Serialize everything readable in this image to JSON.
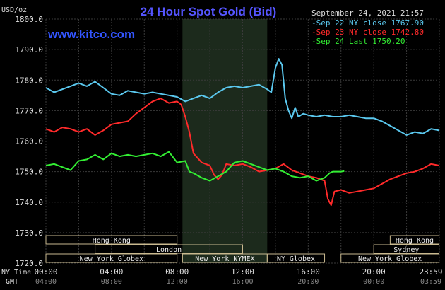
{
  "header": {
    "title": "24 Hour Spot Gold (Bid)",
    "datetime": "September 24, 2021 21:57",
    "site": "www.kitco.com",
    "currency_label": "USD/oz"
  },
  "legend": [
    {
      "text": "Sep 22 NY close 1767.90",
      "color": "#5bc8ee"
    },
    {
      "text": "Sep 23 NY close 1742.80",
      "color": "#ff2a2a"
    },
    {
      "text": "Sep 24 Last 1750.20",
      "color": "#33ee33"
    }
  ],
  "sessions": {
    "row1": [
      {
        "label": "Hong Kong",
        "start": "00:00",
        "end": "08:00"
      },
      {
        "label": "Hong Kong",
        "start": "21:00",
        "end": "23:59"
      }
    ],
    "row2": [
      {
        "label": "London",
        "start": "03:00",
        "end": "12:00"
      },
      {
        "label": "Sydney",
        "start": "20:00",
        "end": "23:59"
      }
    ],
    "row3": [
      {
        "label": "New York Globex",
        "start": "00:00",
        "end": "08:00"
      },
      {
        "label": "New York NYMEX",
        "start": "08:20",
        "end": "13:30"
      },
      {
        "label": "NY Globex",
        "start": "13:30",
        "end": "17:00"
      },
      {
        "label": "New York Globex",
        "start": "18:00",
        "end": "23:59"
      }
    ]
  },
  "axis": {
    "row1_label": "NY Time",
    "row2_label": "GMT",
    "ny_ticks": [
      "00:00",
      "04:00",
      "08:00",
      "12:00",
      "16:00",
      "20:00",
      "23:59"
    ],
    "gmt_ticks": [
      "04:00",
      "08:00",
      "12:00",
      "16:00",
      "20:00",
      "00:00",
      "03:59"
    ]
  },
  "colors": {
    "background": "#000000",
    "grid": "#3a3a3a",
    "title": "#5555ff",
    "site": "#3355ff",
    "nymex_shade": "#1c2a1c",
    "session_border": "#c9b98f",
    "axis_text": "#dddddd"
  },
  "chart_data": {
    "type": "line",
    "title": "24 Hour Spot Gold (Bid)",
    "ylabel": "USD/oz",
    "xlabel": "NY Time",
    "ylim": [
      1720,
      1800
    ],
    "xlim": [
      0,
      24
    ],
    "yticks": [
      "1800.0",
      "1790.0",
      "1780.0",
      "1770.0",
      "1760.0",
      "1750.0",
      "1740.0",
      "1730.0",
      "1720.0"
    ],
    "shaded_region": [
      8.33,
      13.5
    ],
    "series": [
      {
        "name": "Sep 22 NY close 1767.90",
        "color": "#5bc8ee",
        "points": [
          [
            0,
            1777.5
          ],
          [
            0.5,
            1776
          ],
          [
            1,
            1777
          ],
          [
            1.5,
            1778
          ],
          [
            2,
            1779
          ],
          [
            2.5,
            1778
          ],
          [
            3,
            1779.5
          ],
          [
            3.5,
            1777.5
          ],
          [
            4,
            1775.5
          ],
          [
            4.5,
            1775
          ],
          [
            5,
            1776.5
          ],
          [
            5.5,
            1776
          ],
          [
            6,
            1775.5
          ],
          [
            6.5,
            1776
          ],
          [
            7,
            1775.5
          ],
          [
            7.5,
            1775
          ],
          [
            8,
            1774.5
          ],
          [
            8.5,
            1773
          ],
          [
            9,
            1774
          ],
          [
            9.5,
            1775
          ],
          [
            10,
            1774
          ],
          [
            10.5,
            1776
          ],
          [
            11,
            1777.5
          ],
          [
            11.5,
            1778
          ],
          [
            12,
            1777.5
          ],
          [
            12.5,
            1778
          ],
          [
            13,
            1778.5
          ],
          [
            13.5,
            1777
          ],
          [
            13.75,
            1776
          ],
          [
            14,
            1784
          ],
          [
            14.2,
            1787
          ],
          [
            14.4,
            1785
          ],
          [
            14.6,
            1774
          ],
          [
            14.8,
            1770
          ],
          [
            15,
            1767.5
          ],
          [
            15.2,
            1771
          ],
          [
            15.4,
            1768
          ],
          [
            15.7,
            1769
          ],
          [
            16,
            1768.5
          ],
          [
            16.5,
            1768
          ],
          [
            17,
            1768.5
          ],
          [
            17.5,
            1768
          ],
          [
            18,
            1768
          ],
          [
            18.5,
            1768.5
          ],
          [
            19,
            1768
          ],
          [
            19.5,
            1767.5
          ],
          [
            20,
            1767.5
          ],
          [
            20.5,
            1766.5
          ],
          [
            21,
            1765
          ],
          [
            21.5,
            1763.5
          ],
          [
            22,
            1762
          ],
          [
            22.5,
            1763
          ],
          [
            23,
            1762.5
          ],
          [
            23.5,
            1764
          ],
          [
            23.98,
            1763.5
          ]
        ]
      },
      {
        "name": "Sep 23 NY close 1742.80",
        "color": "#ff2a2a",
        "points": [
          [
            0,
            1764
          ],
          [
            0.5,
            1763
          ],
          [
            1,
            1764.5
          ],
          [
            1.5,
            1764
          ],
          [
            2,
            1763
          ],
          [
            2.5,
            1764
          ],
          [
            3,
            1762
          ],
          [
            3.5,
            1763.5
          ],
          [
            4,
            1765.5
          ],
          [
            4.5,
            1766
          ],
          [
            5,
            1766.5
          ],
          [
            5.5,
            1769
          ],
          [
            6,
            1771
          ],
          [
            6.5,
            1773
          ],
          [
            7,
            1774
          ],
          [
            7.5,
            1772.5
          ],
          [
            8,
            1773
          ],
          [
            8.25,
            1772
          ],
          [
            8.5,
            1768
          ],
          [
            8.75,
            1763
          ],
          [
            9,
            1756
          ],
          [
            9.5,
            1753
          ],
          [
            10,
            1752
          ],
          [
            10.25,
            1749
          ],
          [
            10.5,
            1747.5
          ],
          [
            10.75,
            1749
          ],
          [
            11,
            1752.5
          ],
          [
            11.5,
            1752
          ],
          [
            12,
            1752.5
          ],
          [
            12.5,
            1751.5
          ],
          [
            13,
            1750
          ],
          [
            13.5,
            1750.5
          ],
          [
            14,
            1751
          ],
          [
            14.5,
            1752.5
          ],
          [
            15,
            1750.5
          ],
          [
            15.5,
            1749.5
          ],
          [
            16,
            1748.5
          ],
          [
            16.5,
            1748
          ],
          [
            17,
            1747
          ],
          [
            17.2,
            1741
          ],
          [
            17.4,
            1739
          ],
          [
            17.6,
            1743.5
          ],
          [
            18,
            1744
          ],
          [
            18.5,
            1743
          ],
          [
            19,
            1743.5
          ],
          [
            19.5,
            1744
          ],
          [
            20,
            1744.5
          ],
          [
            20.5,
            1746
          ],
          [
            21,
            1747.5
          ],
          [
            21.5,
            1748.5
          ],
          [
            22,
            1749.5
          ],
          [
            22.5,
            1750
          ],
          [
            23,
            1751
          ],
          [
            23.5,
            1752.5
          ],
          [
            23.98,
            1752
          ]
        ]
      },
      {
        "name": "Sep 24 Last 1750.20",
        "color": "#33ee33",
        "points": [
          [
            0,
            1752
          ],
          [
            0.5,
            1752.5
          ],
          [
            1,
            1751.5
          ],
          [
            1.5,
            1750.5
          ],
          [
            2,
            1753.5
          ],
          [
            2.5,
            1754
          ],
          [
            3,
            1755.5
          ],
          [
            3.5,
            1754
          ],
          [
            4,
            1756
          ],
          [
            4.5,
            1755
          ],
          [
            5,
            1755.5
          ],
          [
            5.5,
            1755
          ],
          [
            6,
            1755.5
          ],
          [
            6.5,
            1756
          ],
          [
            7,
            1755
          ],
          [
            7.5,
            1756.5
          ],
          [
            8,
            1753
          ],
          [
            8.5,
            1753.5
          ],
          [
            8.75,
            1750
          ],
          [
            9,
            1749.5
          ],
          [
            9.5,
            1748
          ],
          [
            10,
            1747
          ],
          [
            10.5,
            1748.5
          ],
          [
            11,
            1750
          ],
          [
            11.5,
            1753
          ],
          [
            12,
            1753.5
          ],
          [
            12.5,
            1752.5
          ],
          [
            13,
            1751.5
          ],
          [
            13.5,
            1750.5
          ],
          [
            14,
            1751
          ],
          [
            14.5,
            1750
          ],
          [
            15,
            1748.5
          ],
          [
            15.5,
            1748
          ],
          [
            16,
            1748.5
          ],
          [
            16.5,
            1747
          ],
          [
            17,
            1748
          ],
          [
            17.3,
            1749.5
          ],
          [
            17.5,
            1750
          ],
          [
            18,
            1750
          ],
          [
            18.2,
            1750.2
          ]
        ]
      }
    ]
  }
}
